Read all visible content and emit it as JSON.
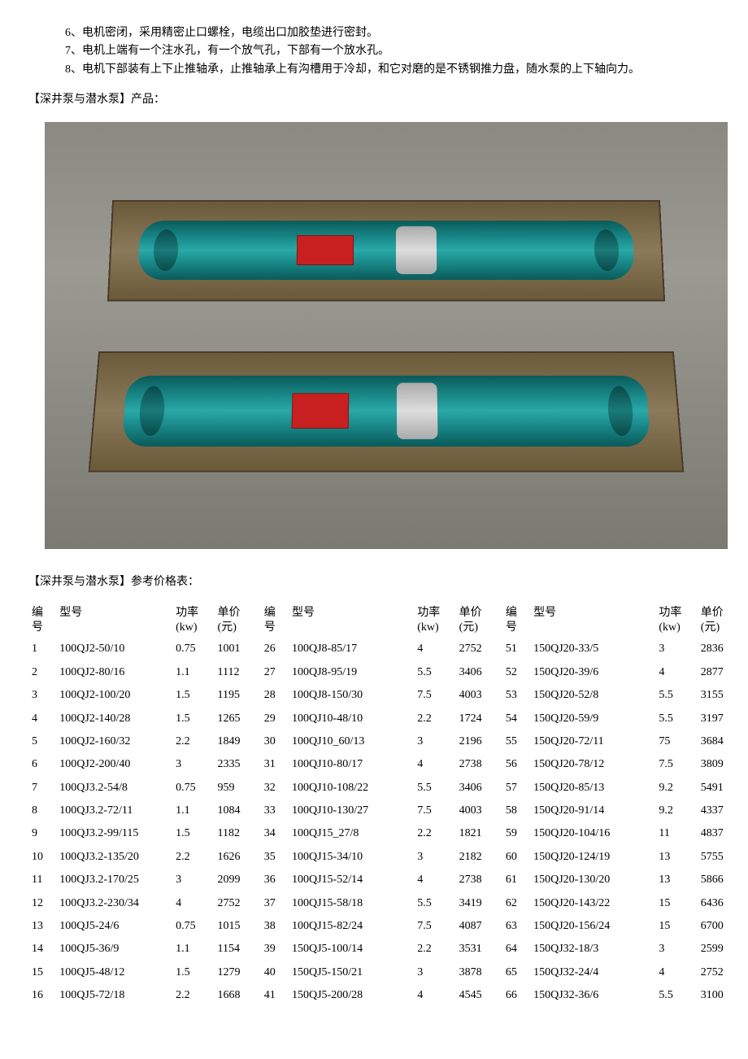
{
  "notes": [
    "6、电机密闭，采用精密止口螺栓，电缆出口加胶垫进行密封。",
    "7、电机上端有一个注水孔，有一个放气孔，下部有一个放水孔。",
    "8、电机下部装有上下止推轴承，止推轴承上有沟槽用于冷却，和它对磨的是不锈钢推力盘，随水泵的上下轴向力。"
  ],
  "product_section_title": "【深井泵与潜水泵】产品：",
  "price_section_title": "【深井泵与潜水泵】参考价格表：",
  "headers": {
    "id": "编号",
    "model": "型号",
    "power": "功率(kw)",
    "price": "单价(元)"
  },
  "rows": [
    {
      "a_id": "1",
      "a_model": "100QJ2-50/10",
      "a_pw": "0.75",
      "a_pr": "1001",
      "b_id": "26",
      "b_model": "100QJ8-85/17",
      "b_pw": "4",
      "b_pr": "2752",
      "c_id": "51",
      "c_model": "150QJ20-33/5",
      "c_pw": "3",
      "c_pr": "2836"
    },
    {
      "a_id": "2",
      "a_model": "100QJ2-80/16",
      "a_pw": "1.1",
      "a_pr": "1112",
      "b_id": "27",
      "b_model": "100QJ8-95/19",
      "b_pw": "5.5",
      "b_pr": "3406",
      "c_id": "52",
      "c_model": "150QJ20-39/6",
      "c_pw": "4",
      "c_pr": "2877"
    },
    {
      "a_id": "3",
      "a_model": "100QJ2-100/20",
      "a_pw": "1.5",
      "a_pr": "1195",
      "b_id": "28",
      "b_model": "100QJ8-150/30",
      "b_pw": "7.5",
      "b_pr": "4003",
      "c_id": "53",
      "c_model": "150QJ20-52/8",
      "c_pw": "5.5",
      "c_pr": "3155"
    },
    {
      "a_id": "4",
      "a_model": "100QJ2-140/28",
      "a_pw": "1.5",
      "a_pr": "1265",
      "b_id": "29",
      "b_model": "100QJ10-48/10",
      "b_pw": "2.2",
      "b_pr": "1724",
      "c_id": "54",
      "c_model": "150QJ20-59/9",
      "c_pw": "5.5",
      "c_pr": "3197"
    },
    {
      "a_id": "5",
      "a_model": "100QJ2-160/32",
      "a_pw": "2.2",
      "a_pr": "1849",
      "b_id": "30",
      "b_model": "100QJ10_60/13",
      "b_pw": "3",
      "b_pr": "2196",
      "c_id": "55",
      "c_model": "150QJ20-72/11",
      "c_pw": "75",
      "c_pr": "3684"
    },
    {
      "a_id": "6",
      "a_model": "100QJ2-200/40",
      "a_pw": "3",
      "a_pr": "2335",
      "b_id": "31",
      "b_model": "100QJ10-80/17",
      "b_pw": "4",
      "b_pr": "2738",
      "c_id": "56",
      "c_model": "150QJ20-78/12",
      "c_pw": "7.5",
      "c_pr": "3809"
    },
    {
      "a_id": "7",
      "a_model": "100QJ3.2-54/8",
      "a_pw": "0.75",
      "a_pr": "959",
      "b_id": "32",
      "b_model": "100QJ10-108/22",
      "b_pw": "5.5",
      "b_pr": "3406",
      "c_id": "57",
      "c_model": "150QJ20-85/13",
      "c_pw": "9.2",
      "c_pr": "5491"
    },
    {
      "a_id": "8",
      "a_model": "100QJ3.2-72/11",
      "a_pw": "1.1",
      "a_pr": "1084",
      "b_id": "33",
      "b_model": "100QJ10-130/27",
      "b_pw": "7.5",
      "b_pr": "4003",
      "c_id": "58",
      "c_model": "150QJ20-91/14",
      "c_pw": "9.2",
      "c_pr": "4337"
    },
    {
      "a_id": "9",
      "a_model": "100QJ3.2-99/115",
      "a_pw": "1.5",
      "a_pr": "1182",
      "b_id": "34",
      "b_model": "100QJ15_27/8",
      "b_pw": "2.2",
      "b_pr": "1821",
      "c_id": "59",
      "c_model": "150QJ20-104/16",
      "c_pw": "11",
      "c_pr": "4837"
    },
    {
      "a_id": "10",
      "a_model": "100QJ3.2-135/20",
      "a_pw": "2.2",
      "a_pr": "1626",
      "b_id": "35",
      "b_model": "100QJ15-34/10",
      "b_pw": "3",
      "b_pr": "2182",
      "c_id": "60",
      "c_model": "150QJ20-124/19",
      "c_pw": "13",
      "c_pr": "5755"
    },
    {
      "a_id": "11",
      "a_model": "100QJ3.2-170/25",
      "a_pw": "3",
      "a_pr": "2099",
      "b_id": "36",
      "b_model": "100QJ15-52/14",
      "b_pw": "4",
      "b_pr": "2738",
      "c_id": "61",
      "c_model": "150QJ20-130/20",
      "c_pw": "13",
      "c_pr": "5866"
    },
    {
      "a_id": "12",
      "a_model": "100QJ3.2-230/34",
      "a_pw": "4",
      "a_pr": "2752",
      "b_id": "37",
      "b_model": "100QJ15-58/18",
      "b_pw": "5.5",
      "b_pr": "3419",
      "c_id": "62",
      "c_model": "150QJ20-143/22",
      "c_pw": "15",
      "c_pr": "6436"
    },
    {
      "a_id": "13",
      "a_model": "100QJ5-24/6",
      "a_pw": "0.75",
      "a_pr": "1015",
      "b_id": "38",
      "b_model": "100QJ15-82/24",
      "b_pw": "7.5",
      "b_pr": "4087",
      "c_id": "63",
      "c_model": "150QJ20-156/24",
      "c_pw": "15",
      "c_pr": "6700"
    },
    {
      "a_id": "14",
      "a_model": "100QJ5-36/9",
      "a_pw": "1.1",
      "a_pr": "1154",
      "b_id": "39",
      "b_model": "150QJ5-100/14",
      "b_pw": "2.2",
      "b_pr": "3531",
      "c_id": "64",
      "c_model": "150QJ32-18/3",
      "c_pw": "3",
      "c_pr": "2599"
    },
    {
      "a_id": "15",
      "a_model": "100QJ5-48/12",
      "a_pw": "1.5",
      "a_pr": "1279",
      "b_id": "40",
      "b_model": "150QJ5-150/21",
      "b_pw": "3",
      "b_pr": "3878",
      "c_id": "65",
      "c_model": "150QJ32-24/4",
      "c_pw": "4",
      "c_pr": "2752"
    },
    {
      "a_id": "16",
      "a_model": "100QJ5-72/18",
      "a_pw": "2.2",
      "a_pr": "1668",
      "b_id": "41",
      "b_model": "150QJ5-200/28",
      "b_pw": "4",
      "b_pr": "4545",
      "c_id": "66",
      "c_model": "150QJ32-36/6",
      "c_pw": "5.5",
      "c_pr": "3100"
    }
  ]
}
